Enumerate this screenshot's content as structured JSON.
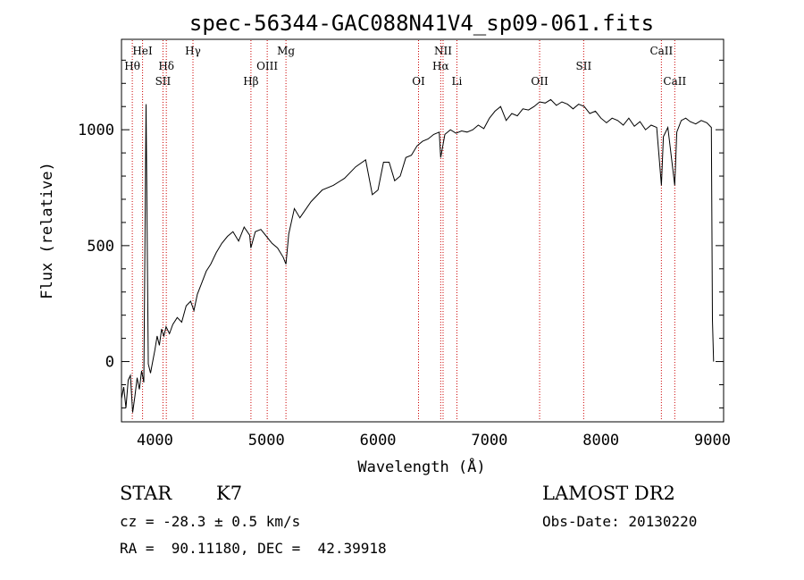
{
  "chart_data": {
    "type": "line",
    "title": "spec-56344-GAC088N41V4_sp09-061.fits",
    "xlabel": "Wavelength (Å)",
    "ylabel": "Flux (relative)",
    "xlim": [
      3700,
      9100
    ],
    "ylim": [
      -260,
      1390
    ],
    "x_ticks": [
      4000,
      5000,
      6000,
      7000,
      8000,
      9000
    ],
    "y_ticks": [
      0,
      500,
      1000
    ],
    "grid": false,
    "line_color": "#000000",
    "marker_color": "#cc0000",
    "series": [
      {
        "x": [
          3700,
          3720,
          3740,
          3760,
          3780,
          3800,
          3820,
          3840,
          3860,
          3880,
          3900,
          3920,
          3940,
          3960,
          3980,
          4000,
          4020,
          4040,
          4060,
          4080,
          4100,
          4130,
          4160,
          4200,
          4240,
          4280,
          4320,
          4350,
          4380,
          4420,
          4460,
          4500,
          4550,
          4600,
          4650,
          4700,
          4750,
          4800,
          4850,
          4860,
          4900,
          4950,
          5000,
          5050,
          5100,
          5150,
          5175,
          5200,
          5250,
          5300,
          5400,
          5500,
          5600,
          5700,
          5800,
          5890,
          5950,
          6000,
          6050,
          6100,
          6150,
          6200,
          6250,
          6300,
          6350,
          6400,
          6450,
          6500,
          6550,
          6563,
          6600,
          6650,
          6700,
          6750,
          6800,
          6850,
          6900,
          6950,
          7000,
          7050,
          7100,
          7150,
          7200,
          7250,
          7300,
          7350,
          7400,
          7450,
          7500,
          7550,
          7600,
          7650,
          7700,
          7750,
          7800,
          7850,
          7900,
          7950,
          8000,
          8050,
          8100,
          8150,
          8200,
          8250,
          8300,
          8350,
          8400,
          8450,
          8500,
          8542,
          8560,
          8600,
          8662,
          8680,
          8720,
          8760,
          8800,
          8850,
          8900,
          8950,
          8990,
          9000,
          9010
        ],
        "y": [
          -160,
          -110,
          -200,
          -80,
          -60,
          -220,
          -150,
          -70,
          -120,
          -40,
          -90,
          1110,
          -10,
          -50,
          0,
          50,
          110,
          70,
          140,
          110,
          150,
          120,
          160,
          190,
          170,
          240,
          260,
          220,
          290,
          340,
          390,
          420,
          470,
          510,
          540,
          560,
          520,
          580,
          545,
          490,
          560,
          570,
          540,
          510,
          490,
          450,
          420,
          550,
          660,
          620,
          690,
          740,
          760,
          790,
          840,
          870,
          720,
          740,
          860,
          860,
          780,
          800,
          880,
          890,
          930,
          950,
          960,
          980,
          990,
          880,
          980,
          1000,
          985,
          995,
          990,
          1000,
          1020,
          1005,
          1050,
          1080,
          1100,
          1040,
          1070,
          1060,
          1090,
          1085,
          1100,
          1120,
          1115,
          1130,
          1105,
          1120,
          1110,
          1090,
          1110,
          1100,
          1070,
          1080,
          1050,
          1030,
          1050,
          1040,
          1020,
          1050,
          1015,
          1035,
          1000,
          1020,
          1010,
          760,
          970,
          1010,
          760,
          990,
          1040,
          1050,
          1035,
          1025,
          1040,
          1030,
          1010,
          180,
          0
        ]
      }
    ],
    "lines": [
      {
        "label": "Hθ",
        "x": 3797,
        "row": 1
      },
      {
        "label": "HeI",
        "x": 3889,
        "row": 0
      },
      {
        "label": "Hδ",
        "x": 4102,
        "row": 1
      },
      {
        "label": "SII",
        "x": 4072,
        "row": 2
      },
      {
        "label": "Hγ",
        "x": 4341,
        "row": 0
      },
      {
        "label": "Hβ",
        "x": 4861,
        "row": 2
      },
      {
        "label": "OIII",
        "x": 5007,
        "row": 1
      },
      {
        "label": "Mg",
        "x": 5175,
        "row": 0
      },
      {
        "label": "OI",
        "x": 6364,
        "row": 2
      },
      {
        "label": "NII",
        "x": 6584,
        "row": 0
      },
      {
        "label": "Hα",
        "x": 6563,
        "row": 1
      },
      {
        "label": "Li",
        "x": 6708,
        "row": 2
      },
      {
        "label": "OII",
        "x": 7450,
        "row": 2
      },
      {
        "label": "SII",
        "x": 7845,
        "row": 1
      },
      {
        "label": "CaII",
        "x": 8542,
        "row": 0
      },
      {
        "label": "CaII",
        "x": 8662,
        "row": 2
      }
    ]
  },
  "footer": {
    "class_label": "STAR",
    "subclass": "K7",
    "survey": "LAMOST DR2",
    "cz": "cz = -28.3 ± 0.5 km/s",
    "obs_date": "Obs-Date: 20130220",
    "coords": "RA =  90.11180, DEC =  42.39918"
  }
}
